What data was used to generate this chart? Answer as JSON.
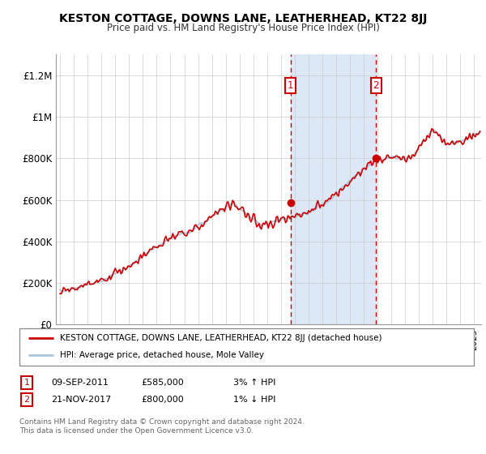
{
  "title": "KESTON COTTAGE, DOWNS LANE, LEATHERHEAD, KT22 8JJ",
  "subtitle": "Price paid vs. HM Land Registry's House Price Index (HPI)",
  "legend_line1": "KESTON COTTAGE, DOWNS LANE, LEATHERHEAD, KT22 8JJ (detached house)",
  "legend_line2": "HPI: Average price, detached house, Mole Valley",
  "annotation1_label": "1",
  "annotation1_date": "09-SEP-2011",
  "annotation1_price": "£585,000",
  "annotation1_hpi": "3% ↑ HPI",
  "annotation2_label": "2",
  "annotation2_date": "21-NOV-2017",
  "annotation2_price": "£800,000",
  "annotation2_hpi": "1% ↓ HPI",
  "footnote": "Contains HM Land Registry data © Crown copyright and database right 2024.\nThis data is licensed under the Open Government Licence v3.0.",
  "hpi_color": "#aac4e0",
  "price_color": "#cc0000",
  "annotation_color": "#cc0000",
  "bg_shaded": "#dce8f5",
  "ylim": [
    0,
    1300000
  ],
  "yticks": [
    0,
    200000,
    400000,
    600000,
    800000,
    1000000,
    1200000
  ],
  "ytick_labels": [
    "£0",
    "£200K",
    "£400K",
    "£600K",
    "£800K",
    "£1M",
    "£1.2M"
  ],
  "sale1_x": 2011.69,
  "sale1_y": 585000,
  "sale2_x": 2017.89,
  "sale2_y": 800000,
  "xmin": 1995.0,
  "xmax": 2025.5
}
